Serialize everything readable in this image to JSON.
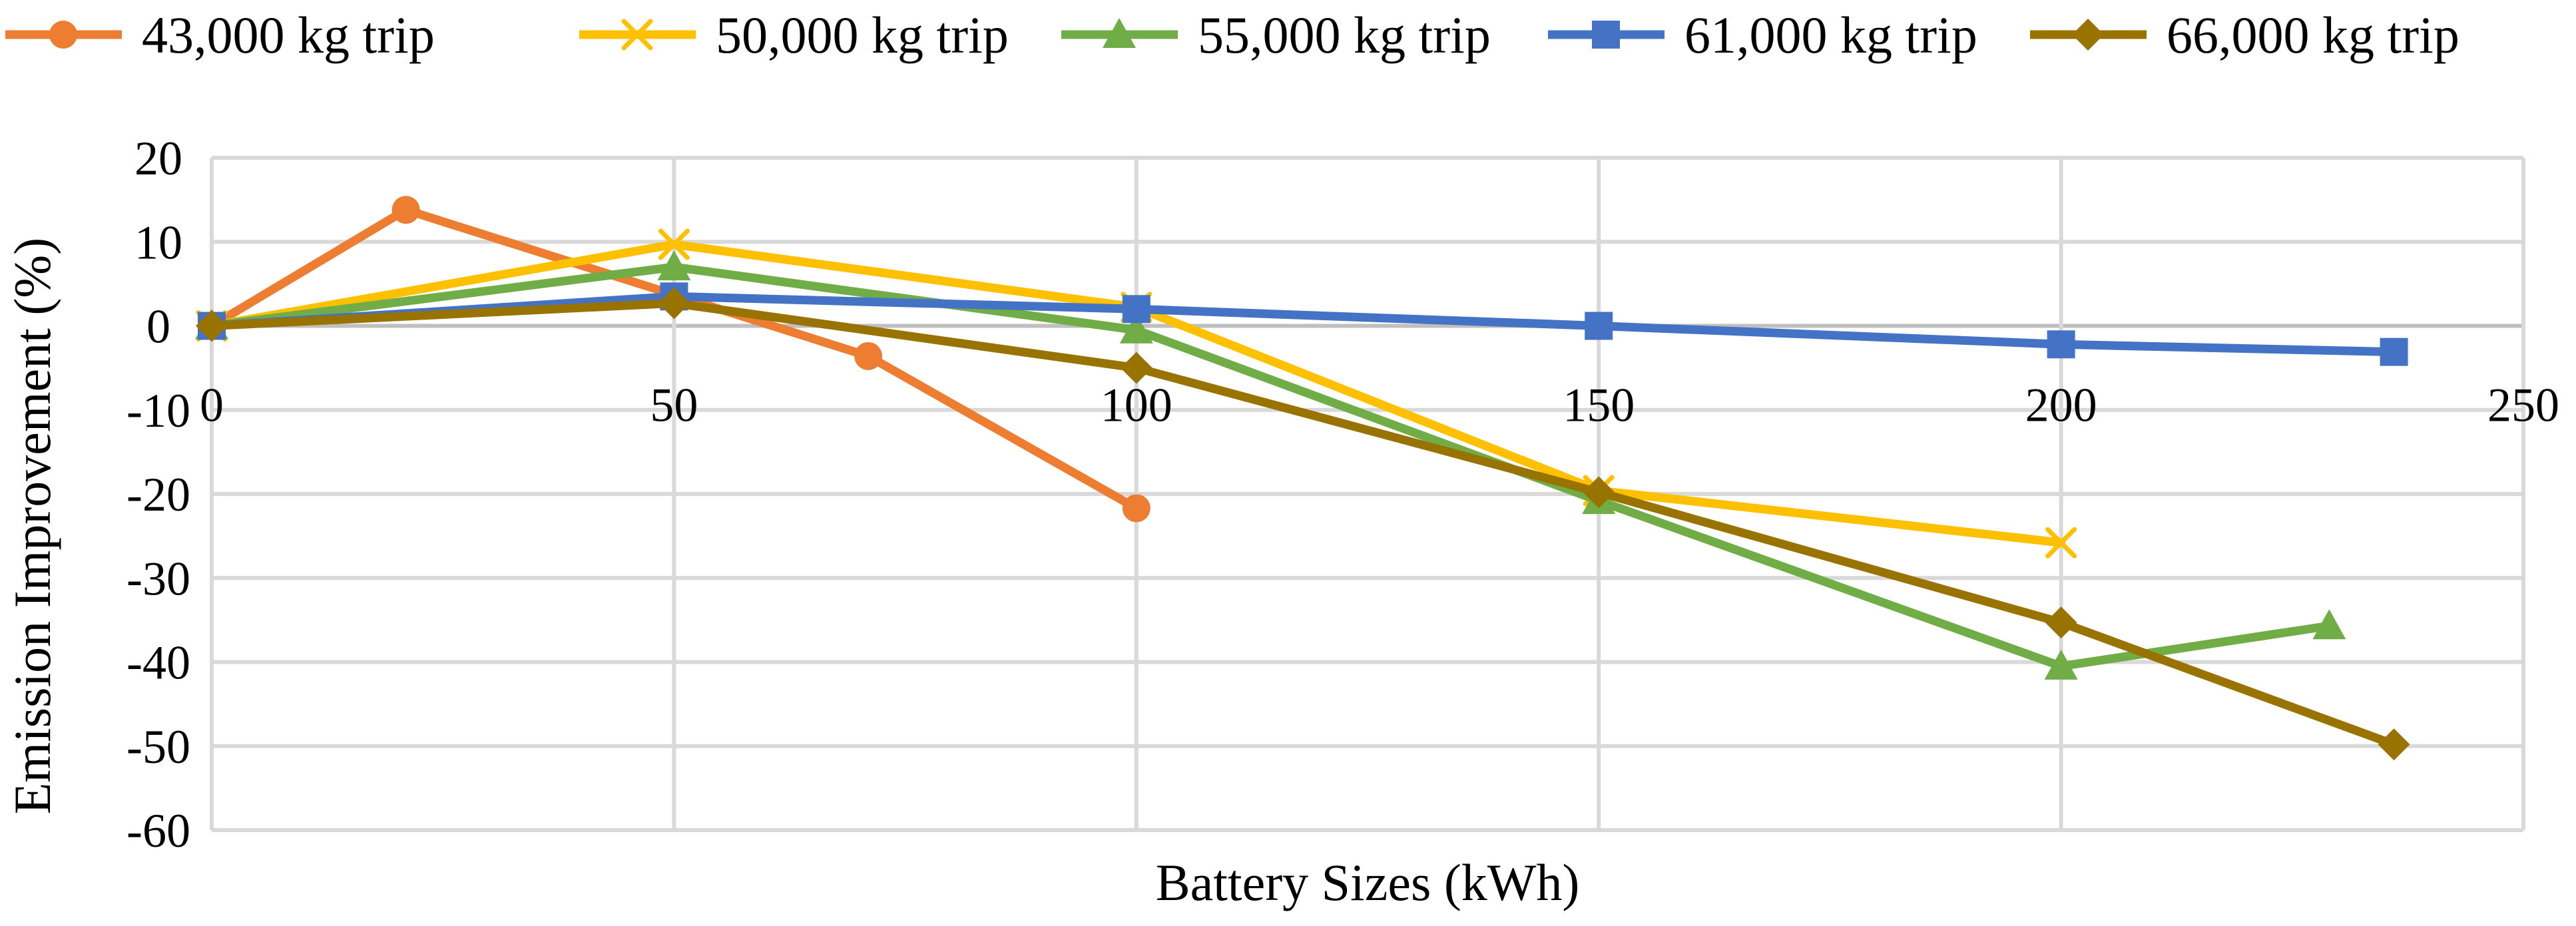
{
  "chart_data": {
    "type": "line",
    "title": "",
    "xlabel": "Battery Sizes (kWh)",
    "ylabel": "Emission Improvement (%)",
    "xlim": [
      0,
      250
    ],
    "ylim": [
      -60,
      20
    ],
    "xticks": [
      0,
      50,
      100,
      150,
      200,
      250
    ],
    "yticks": [
      20,
      10,
      0,
      -10,
      -20,
      -30,
      -40,
      -50,
      -60
    ],
    "grid": true,
    "legend_position": "top",
    "series": [
      {
        "name": "43,000 kg trip",
        "color": "#ed7d31",
        "marker": "circle",
        "points": [
          [
            0,
            0
          ],
          [
            21,
            13.8
          ],
          [
            71,
            -3.6
          ],
          [
            100,
            -21.7
          ]
        ]
      },
      {
        "name": "50,000 kg trip",
        "color": "#ffc000",
        "marker": "x",
        "points": [
          [
            0,
            0
          ],
          [
            50,
            9.7
          ],
          [
            100,
            2.2
          ],
          [
            150,
            -19.6
          ],
          [
            200,
            -25.8
          ]
        ]
      },
      {
        "name": "55,000 kg trip",
        "color": "#70ad47",
        "marker": "triangle",
        "points": [
          [
            0,
            0
          ],
          [
            50,
            7.0
          ],
          [
            100,
            -0.5
          ],
          [
            150,
            -20.8
          ],
          [
            200,
            -40.5
          ],
          [
            229,
            -35.7
          ]
        ]
      },
      {
        "name": "61,000 kg trip",
        "color": "#4472c4",
        "marker": "square",
        "points": [
          [
            0,
            0
          ],
          [
            50,
            3.5
          ],
          [
            100,
            2.0
          ],
          [
            150,
            0
          ],
          [
            200,
            -2.2
          ],
          [
            236,
            -3.1
          ]
        ]
      },
      {
        "name": "66,000 kg trip",
        "color": "#997300",
        "marker": "diamond",
        "points": [
          [
            0,
            0
          ],
          [
            50,
            2.7
          ],
          [
            100,
            -5.0
          ],
          [
            150,
            -19.8
          ],
          [
            200,
            -35.3
          ],
          [
            236,
            -49.8
          ]
        ]
      }
    ]
  }
}
